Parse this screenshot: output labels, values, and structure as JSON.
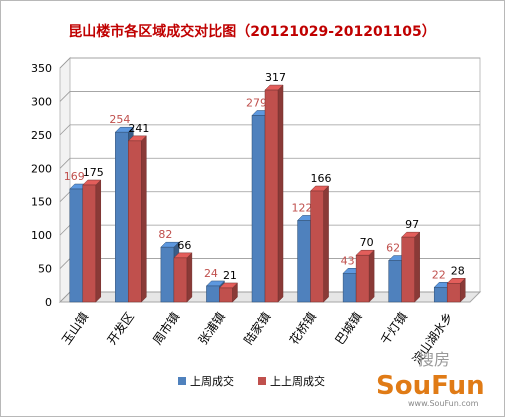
{
  "chart_data": {
    "type": "bar",
    "title": "昆山楼市各区域成交对比图（20121029-201201105）",
    "categories": [
      "玉山镇",
      "开发区",
      "周市镇",
      "张浦镇",
      "陆家镇",
      "花桥镇",
      "巴城镇",
      "千灯镇",
      "淀山湖水乡"
    ],
    "series": [
      {
        "name": "上周成交",
        "values": [
          169,
          254,
          82,
          24,
          279,
          122,
          43,
          62,
          22
        ],
        "color": "#4f81bd",
        "label_color": "#c0504d"
      },
      {
        "name": "上上周成交",
        "values": [
          175,
          241,
          66,
          21,
          317,
          166,
          70,
          97,
          28
        ],
        "color": "#c0504d",
        "label_color": "#000000"
      }
    ],
    "ylim": [
      0,
      350
    ],
    "yticks": [
      "0",
      "50",
      "100",
      "150",
      "200",
      "250",
      "300",
      "350"
    ],
    "xlabel": "",
    "ylabel": "",
    "grid": true,
    "legend_position": "bottom"
  },
  "watermark": {
    "brand": "搜房",
    "brand_latin": "SouFun",
    "url": "www.SouFun.com"
  }
}
